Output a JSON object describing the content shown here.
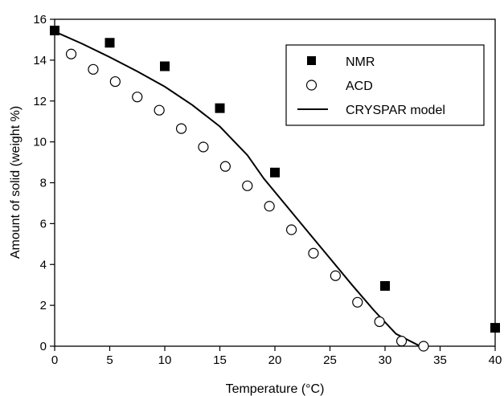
{
  "chart_data": {
    "type": "scatter",
    "xlabel": "Temperature (°C)",
    "ylabel": "Amount of solid (weight %)",
    "xlim": [
      0,
      40
    ],
    "ylim": [
      0,
      16
    ],
    "xticks": [
      0,
      5,
      10,
      15,
      20,
      25,
      30,
      35,
      40
    ],
    "yticks": [
      0,
      2,
      4,
      6,
      8,
      10,
      12,
      14,
      16
    ],
    "grid": false,
    "legend_position": "top-right",
    "series": [
      {
        "name": "NMR",
        "kind": "marker",
        "marker": "filled-square",
        "color": "#000000",
        "x": [
          0,
          5,
          10,
          15,
          20,
          30,
          40
        ],
        "y": [
          15.45,
          14.85,
          13.7,
          11.65,
          8.5,
          2.95,
          0.9
        ]
      },
      {
        "name": "ACD",
        "kind": "marker",
        "marker": "open-circle",
        "color": "#000000",
        "x": [
          1.5,
          3.5,
          5.5,
          7.5,
          9.5,
          11.5,
          13.5,
          15.5,
          17.5,
          19.5,
          21.5,
          23.5,
          25.5,
          27.5,
          29.5,
          31.5,
          33.5
        ],
        "y": [
          14.3,
          13.55,
          12.95,
          12.2,
          11.55,
          10.65,
          9.75,
          8.8,
          7.85,
          6.85,
          5.7,
          4.55,
          3.45,
          2.15,
          1.2,
          0.25,
          0.0
        ]
      },
      {
        "name": "CRYSPAR model",
        "kind": "line",
        "color": "#000000",
        "x": [
          0,
          2.5,
          5,
          7.5,
          10,
          12.5,
          15,
          17.5,
          19,
          21,
          23,
          25,
          27,
          29,
          31,
          33,
          33.5
        ],
        "y": [
          15.4,
          14.8,
          14.15,
          13.45,
          12.7,
          11.8,
          10.75,
          9.35,
          8.2,
          6.9,
          5.6,
          4.3,
          3.0,
          1.75,
          0.6,
          0.05,
          0.0
        ]
      }
    ]
  }
}
